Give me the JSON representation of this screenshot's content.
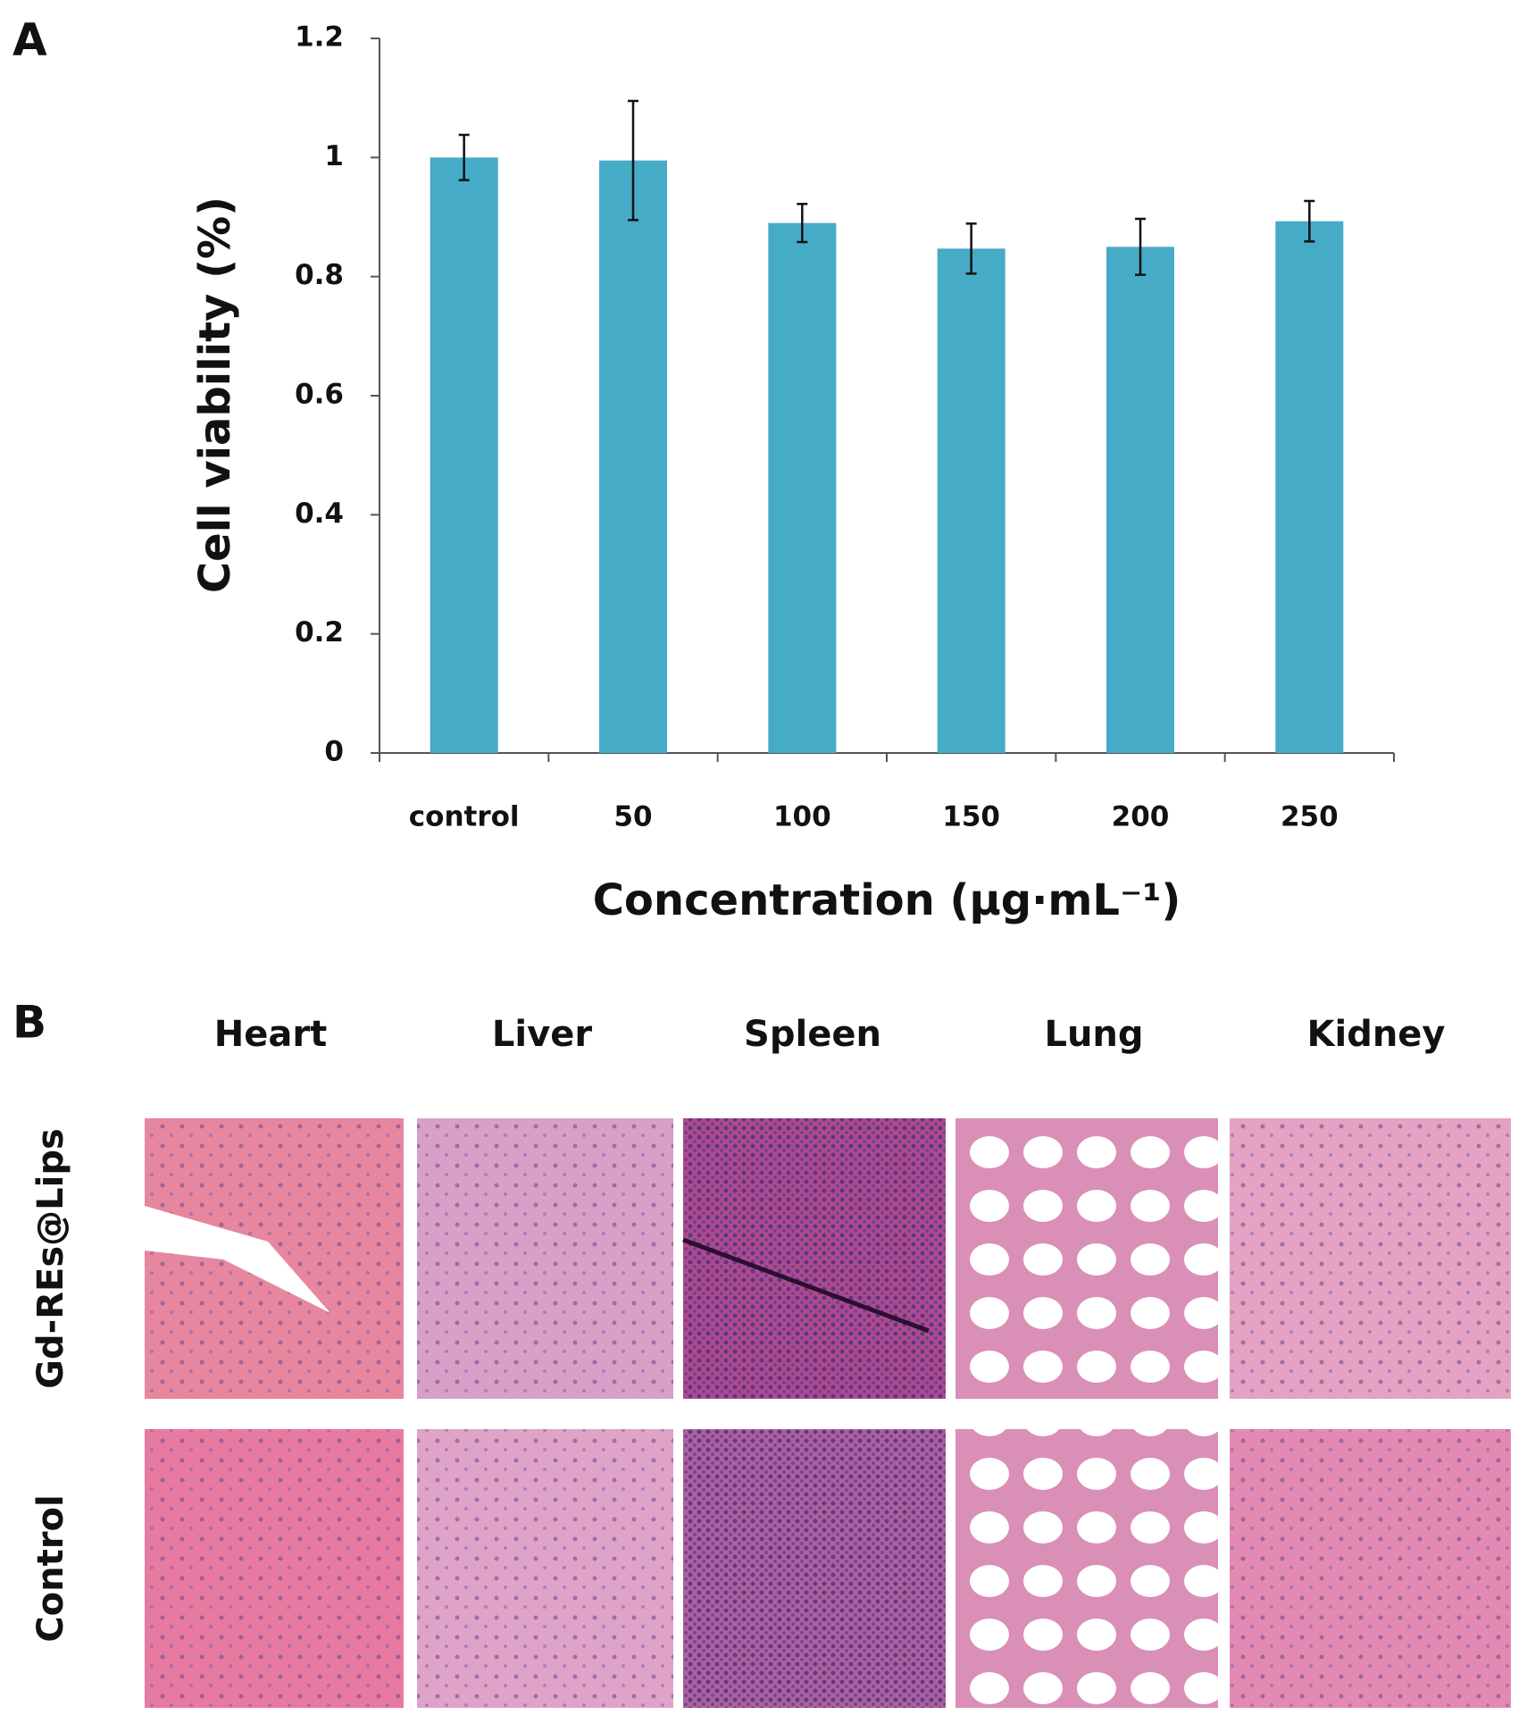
{
  "panel_labels": [
    "A",
    "B"
  ],
  "chart_data": {
    "type": "bar",
    "categories": [
      "control",
      "50",
      "100",
      "150",
      "200",
      "250"
    ],
    "values": [
      1.0,
      0.995,
      0.89,
      0.847,
      0.85,
      0.893
    ],
    "errors": [
      0.038,
      0.1,
      0.032,
      0.042,
      0.047,
      0.034
    ],
    "color": "#46abc6",
    "x_label": "Concentration (μg·mL⁻¹)",
    "y_label": "Cell viability (%)",
    "ylim": [
      0,
      1.2
    ],
    "yticks": [
      0,
      0.2,
      0.4,
      0.6,
      0.8,
      1,
      1.2
    ],
    "grid": false
  },
  "histology": {
    "columns": [
      "Heart",
      "Liver",
      "Spleen",
      "Lung",
      "Kidney"
    ],
    "rows": [
      "Gd-REs@Lips",
      "Control"
    ]
  }
}
